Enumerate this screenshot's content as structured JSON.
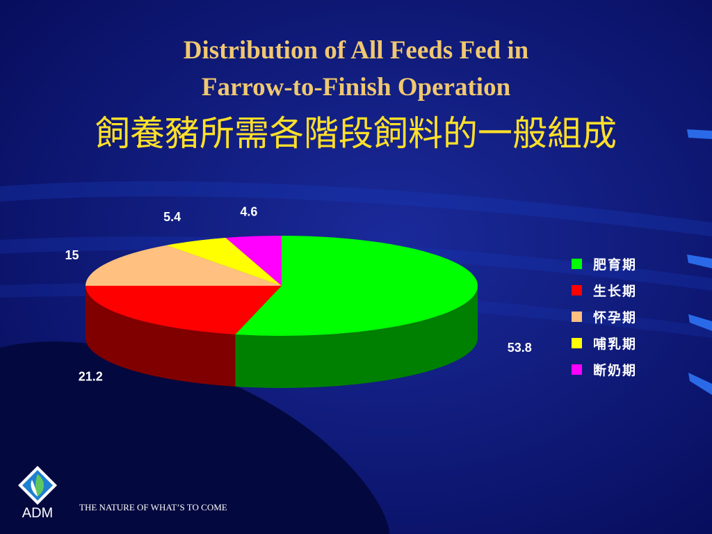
{
  "title": {
    "line1": "Distribution of All Feeds Fed in",
    "line2": "Farrow-to-Finish Operation",
    "line3": "飼養豬所需各階段飼料的一般組成"
  },
  "chart_data": {
    "type": "pie",
    "style": "3d-extruded",
    "legend_position": "right",
    "slices": [
      {
        "label": "肥育期",
        "value": 53.8,
        "value_label": "53.8",
        "color": "#00ff00",
        "side_color": "#008000"
      },
      {
        "label": "生长期",
        "value": 21.2,
        "value_label": "21.2",
        "color": "#ff0000",
        "side_color": "#800000"
      },
      {
        "label": "怀孕期",
        "value": 15,
        "value_label": "15",
        "color": "#ffc080",
        "side_color": "#806040"
      },
      {
        "label": "哺乳期",
        "value": 5.4,
        "value_label": "5.4",
        "color": "#ffff00",
        "side_color": "#808000"
      },
      {
        "label": "断奶期",
        "value": 4.6,
        "value_label": "4.6",
        "color": "#ff00ff",
        "side_color": "#800080"
      }
    ]
  },
  "footer": {
    "logo_text": "ADM",
    "tagline": "THE NATURE OF WHAT’S TO COME"
  }
}
